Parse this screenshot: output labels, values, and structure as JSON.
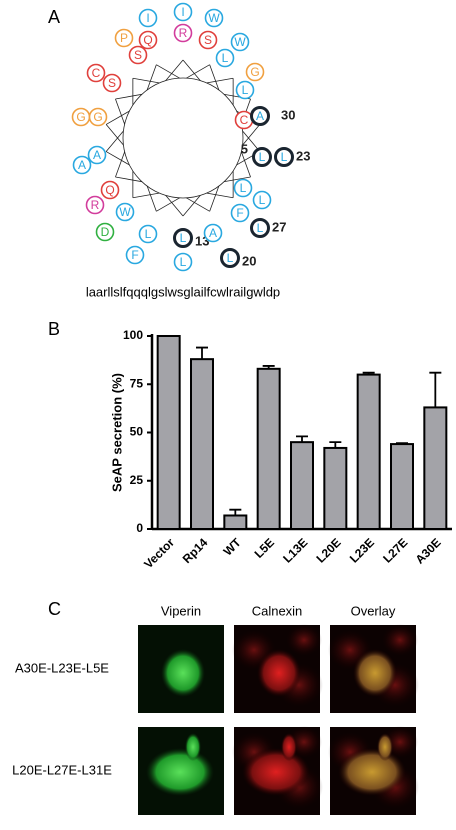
{
  "panel_a": {
    "letter": "A",
    "residues": [
      {
        "letter": "I",
        "color": "#29a8e0"
      },
      {
        "letter": "I",
        "color": "#29a8e0"
      },
      {
        "letter": "R",
        "color": "#d23c9c"
      },
      {
        "letter": "W",
        "color": "#29a8e0"
      },
      {
        "letter": "Q",
        "color": "#e0403c"
      },
      {
        "letter": "S",
        "color": "#e0403c"
      },
      {
        "letter": "P",
        "color": "#f0a040"
      },
      {
        "letter": "S",
        "color": "#e0403c"
      },
      {
        "letter": "W",
        "color": "#29a8e0"
      },
      {
        "letter": "L",
        "color": "#29a8e0"
      },
      {
        "letter": "G",
        "color": "#f0a040"
      },
      {
        "letter": "C",
        "color": "#e0403c"
      },
      {
        "letter": "S",
        "color": "#e0403c"
      },
      {
        "letter": "L",
        "color": "#29a8e0"
      },
      {
        "letter": "G",
        "color": "#f0a040"
      },
      {
        "letter": "G",
        "color": "#f0a040"
      },
      {
        "letter": "C",
        "color": "#e0403c"
      },
      {
        "letter": "A",
        "color": "#29a8e0",
        "label": 30
      },
      {
        "letter": "L",
        "color": "#29a8e0",
        "label": 5
      },
      {
        "letter": "L",
        "color": "#29a8e0",
        "label": 23
      },
      {
        "letter": "A",
        "color": "#29a8e0"
      },
      {
        "letter": "A",
        "color": "#29a8e0"
      },
      {
        "letter": "Q",
        "color": "#e0403c"
      },
      {
        "letter": "R",
        "color": "#d23c9c"
      },
      {
        "letter": "L",
        "color": "#29a8e0"
      },
      {
        "letter": "L",
        "color": "#29a8e0"
      },
      {
        "letter": "W",
        "color": "#29a8e0"
      },
      {
        "letter": "D",
        "color": "#30b040"
      },
      {
        "letter": "F",
        "color": "#29a8e0"
      },
      {
        "letter": "L",
        "color": "#29a8e0",
        "label": 27
      },
      {
        "letter": "L",
        "color": "#29a8e0"
      },
      {
        "letter": "F",
        "color": "#29a8e0"
      },
      {
        "letter": "L",
        "color": "#29a8e0",
        "label": 13
      },
      {
        "letter": "L",
        "color": "#29a8e0"
      },
      {
        "letter": "A",
        "color": "#29a8e0"
      },
      {
        "letter": "L",
        "color": "#29a8e0",
        "label": 20
      }
    ],
    "sequence": "laarllslfqqqlgslwsglailfcwlrailgwldp"
  },
  "chart_data": {
    "type": "bar",
    "letter": "B",
    "ylabel": "SeAP secretion (%)",
    "categories": [
      "Vector",
      "Rp14",
      "WT",
      "L5E",
      "L13E",
      "L20E",
      "L23E",
      "L27E",
      "A30E"
    ],
    "values": [
      100,
      88,
      7,
      83,
      45,
      42,
      80,
      44,
      63
    ],
    "errors": [
      0,
      6,
      3,
      1.5,
      3,
      3,
      1,
      0.5,
      18
    ],
    "color": "#a3a3a8",
    "ylim": [
      0,
      100
    ],
    "yticks": [
      0,
      25,
      50,
      75,
      100
    ]
  },
  "panel_c": {
    "letter": "C",
    "columns": [
      "Viperin",
      "Calnexin",
      "Overlay"
    ],
    "rows": [
      "A30E-L23E-L5E",
      "L20E-L27E-L31E"
    ]
  }
}
